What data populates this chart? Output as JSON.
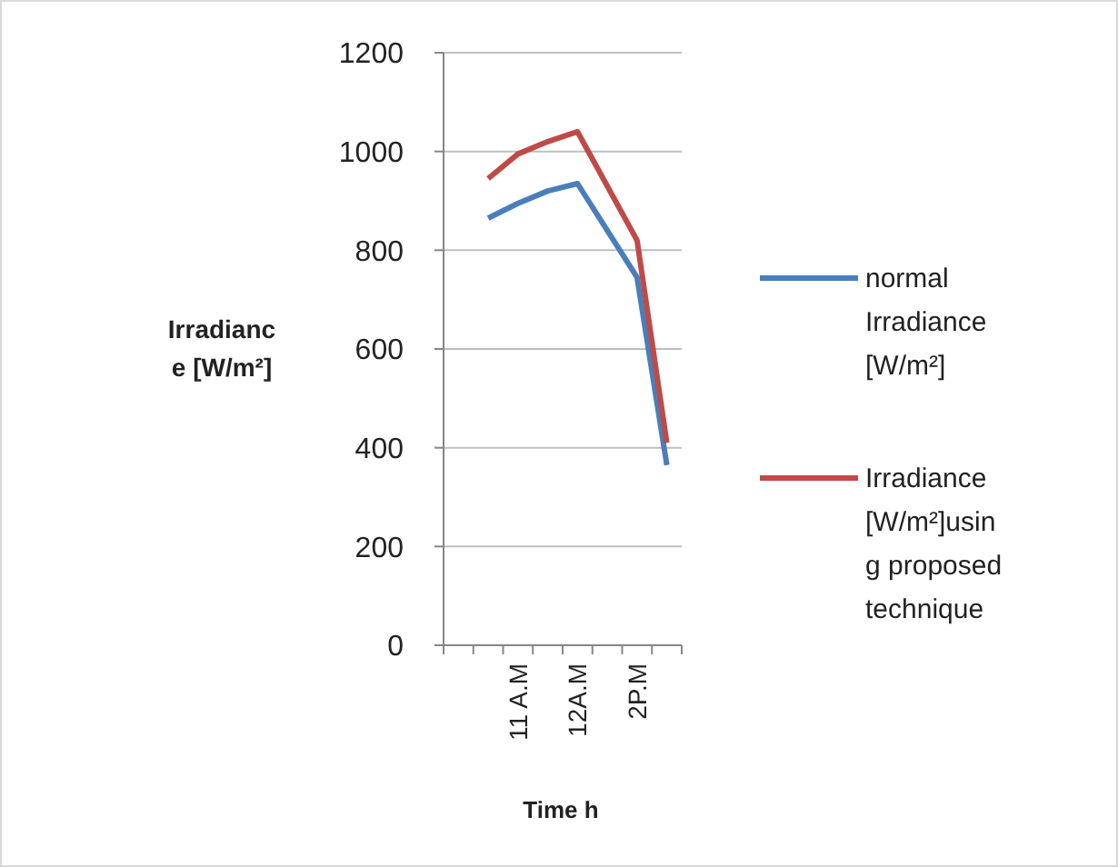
{
  "chart_data": {
    "type": "line",
    "xlabel": "Time h",
    "ylabel": "Irradiance [W/m²]",
    "categories": [
      null,
      null,
      "11 A.M",
      null,
      "12A.M",
      null,
      "2P.M",
      null
    ],
    "series": [
      {
        "name": "normal Irradiance [W/m²]",
        "color": "#4a7ebb",
        "values": [
          null,
          865,
          895,
          920,
          935,
          840,
          745,
          365
        ]
      },
      {
        "name": "Irradiance [W/m²]using proposed technique",
        "color": "#be4b48",
        "values": [
          null,
          945,
          995,
          1020,
          1040,
          930,
          820,
          410
        ]
      }
    ],
    "ylim": [
      0,
      1200
    ],
    "yticks": [
      0,
      200,
      400,
      600,
      800,
      1000,
      1200
    ],
    "grid": "y",
    "legend": "right",
    "marker": "none",
    "line_style": "solid"
  }
}
